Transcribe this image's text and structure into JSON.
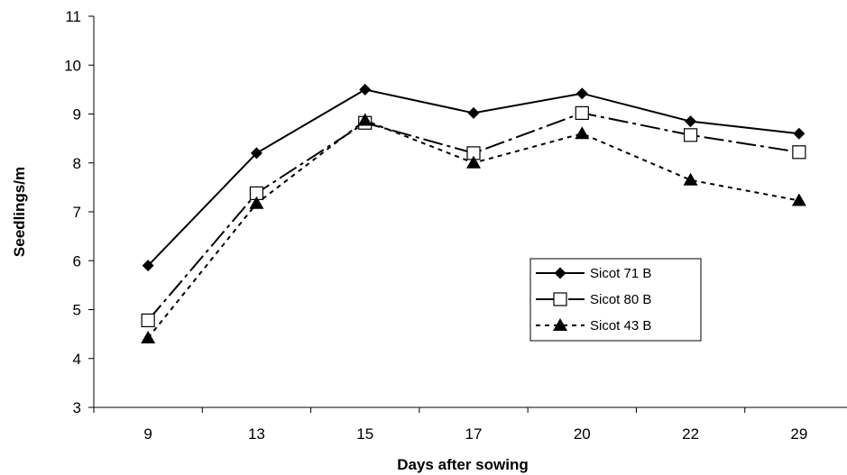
{
  "chart_data": {
    "type": "line",
    "title": "",
    "xlabel": "Days after sowing",
    "ylabel": "Seedlings/m",
    "categories": [
      "9",
      "13",
      "15",
      "17",
      "20",
      "22",
      "29"
    ],
    "ylim": [
      3,
      11
    ],
    "yticks": [
      3,
      4,
      5,
      6,
      7,
      8,
      9,
      10,
      11
    ],
    "grid": false,
    "legend_position": "center-right",
    "series": [
      {
        "name": "Sicot 71 B",
        "values": [
          5.9,
          8.2,
          9.5,
          9.02,
          9.42,
          8.85,
          8.6
        ],
        "marker": "diamond-filled",
        "line": "solid",
        "color": "#000000"
      },
      {
        "name": "Sicot 80 B",
        "values": [
          4.78,
          7.38,
          8.82,
          8.2,
          9.02,
          8.57,
          8.22
        ],
        "marker": "square-open",
        "line": "dash-dot",
        "color": "#000000"
      },
      {
        "name": "Sicot 43 B",
        "values": [
          4.42,
          7.17,
          8.87,
          8.0,
          8.6,
          7.65,
          7.23
        ],
        "marker": "triangle-filled",
        "line": "dotted",
        "color": "#000000"
      }
    ]
  }
}
